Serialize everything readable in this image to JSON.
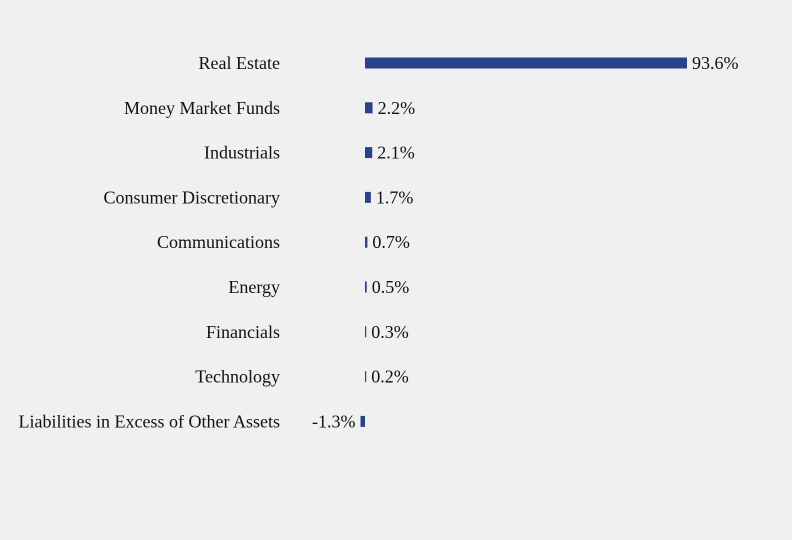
{
  "chart_data": {
    "type": "bar",
    "orientation": "horizontal",
    "categories": [
      "Real Estate",
      "Money Market Funds",
      "Industrials",
      "Consumer Discretionary",
      "Communications",
      "Energy",
      "Financials",
      "Technology",
      "Liabilities in Excess of Other Assets"
    ],
    "values": [
      93.6,
      2.2,
      2.1,
      1.7,
      0.7,
      0.5,
      0.3,
      0.2,
      -1.3
    ],
    "value_labels": [
      "93.6%",
      "2.2%",
      "2.1%",
      "1.7%",
      "0.7%",
      "0.5%",
      "0.3%",
      "0.2%",
      "-1.3%"
    ],
    "bar_color": "#2a4289",
    "grid": false,
    "legend": "none"
  }
}
